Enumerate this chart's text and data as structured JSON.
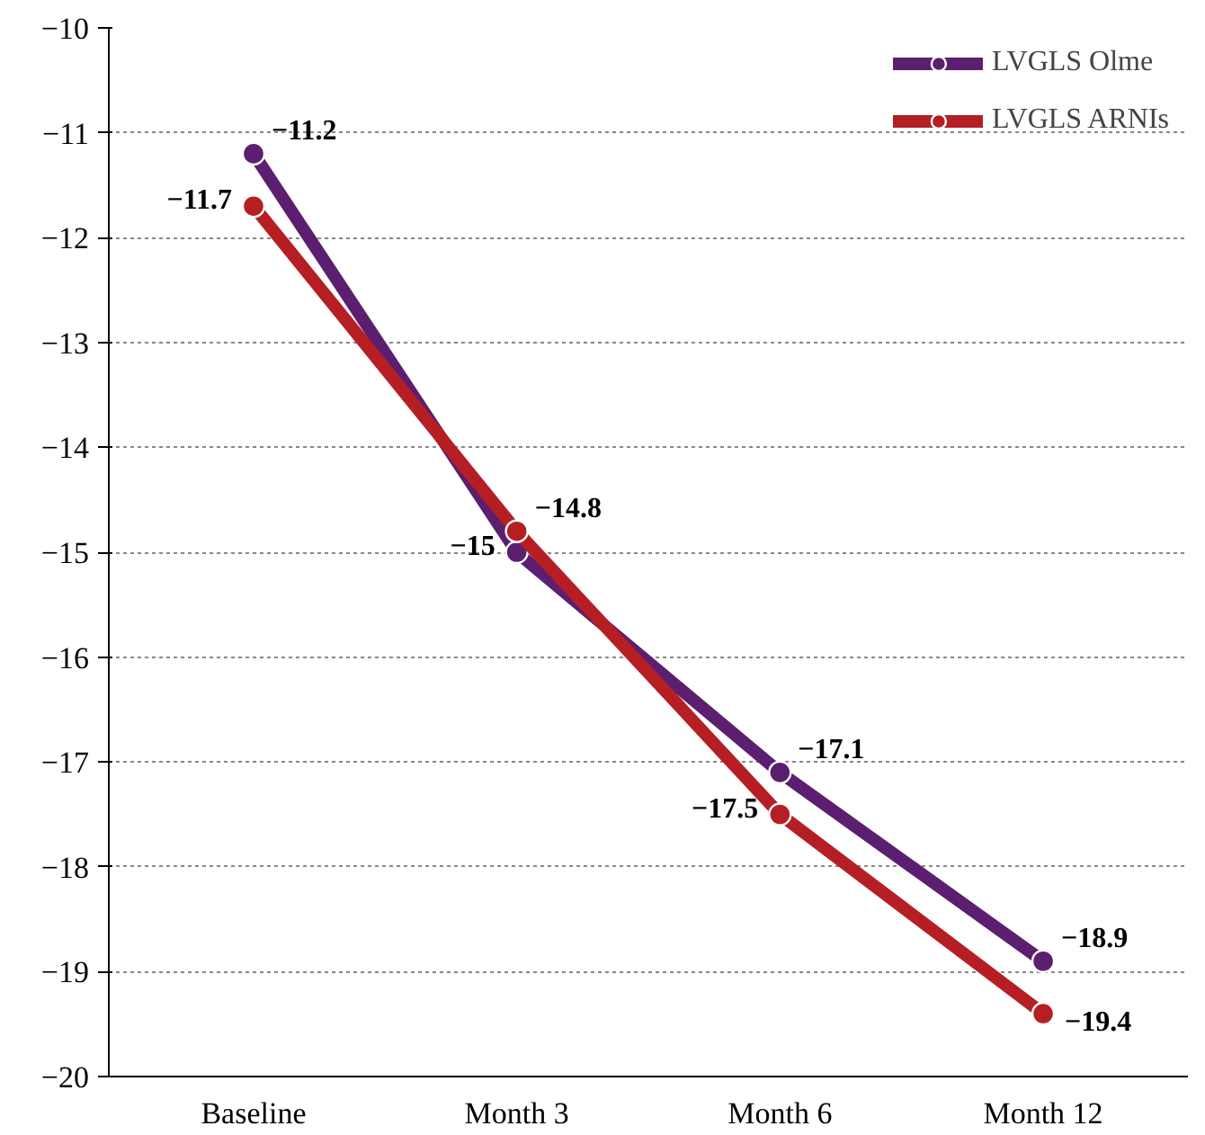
{
  "chart_data": {
    "type": "line",
    "categories": [
      "Baseline",
      "Month 3",
      "Month 6",
      "Month 12"
    ],
    "series": [
      {
        "name": "LVGLS Olme",
        "color": "#5c1f6f",
        "values": [
          -11.2,
          -15,
          -17.1,
          -18.9
        ]
      },
      {
        "name": "LVGLS ARNIs",
        "color": "#b51f24",
        "values": [
          -11.7,
          -14.8,
          -17.5,
          -19.4
        ]
      }
    ],
    "ylim": [
      -20,
      -10
    ],
    "yticks": [
      {
        "value": -20,
        "label": "−20"
      },
      {
        "value": -19,
        "label": "−19"
      },
      {
        "value": -18,
        "label": "−18"
      },
      {
        "value": -17,
        "label": "−17"
      },
      {
        "value": -16,
        "label": "−16"
      },
      {
        "value": -15,
        "label": "−15"
      },
      {
        "value": -14,
        "label": "−14"
      },
      {
        "value": -13,
        "label": "−13"
      },
      {
        "value": -12,
        "label": "−12"
      },
      {
        "value": -11,
        "label": "−11"
      },
      {
        "value": -10,
        "label": "−10"
      }
    ],
    "grid": "y",
    "legend": "top right",
    "marker": "circle",
    "line_style": "solid",
    "data_labels": true
  }
}
